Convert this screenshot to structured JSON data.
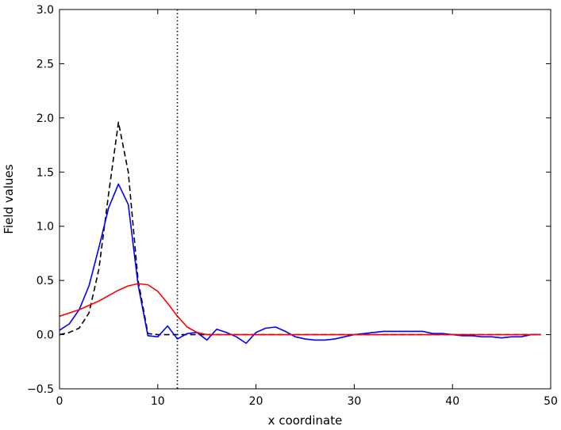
{
  "chart_data": {
    "type": "line",
    "title": "",
    "xlabel": "x coordinate",
    "ylabel": "Field values",
    "xlim": [
      0,
      50
    ],
    "ylim": [
      -0.5,
      3.0
    ],
    "xticks": [
      0,
      10,
      20,
      30,
      40,
      50
    ],
    "yticks": [
      -0.5,
      0.0,
      0.5,
      1.0,
      1.5,
      2.0,
      2.5,
      3.0
    ],
    "xtick_labels": [
      "0",
      "10",
      "20",
      "30",
      "40",
      "50"
    ],
    "ytick_labels": [
      "−0.5",
      "0.0",
      "0.5",
      "1.0",
      "1.5",
      "2.0",
      "2.5",
      "3.0"
    ],
    "grid": false,
    "legend": "none",
    "vline": {
      "x": 12,
      "style": "dotted",
      "color": "#000000"
    },
    "series": [
      {
        "color": "#000000",
        "style": "dashed",
        "x": [
          0,
          1,
          2,
          3,
          4,
          5,
          6,
          7,
          8,
          9,
          10,
          11,
          12,
          13,
          14,
          15,
          16,
          17,
          18,
          19,
          20,
          21,
          22,
          23,
          24,
          25,
          26,
          27,
          28,
          29,
          30,
          31,
          32,
          33,
          34,
          35,
          36,
          37,
          38,
          39,
          40,
          41,
          42,
          43,
          44,
          45,
          46,
          47,
          48,
          49
        ],
        "y": [
          0.0,
          0.02,
          0.06,
          0.2,
          0.6,
          1.3,
          1.96,
          1.5,
          0.5,
          0.01,
          0.0,
          0.0,
          0.0,
          0.0,
          0.0,
          0.0,
          0.0,
          0.0,
          0.0,
          0.0,
          0.0,
          0.0,
          0.0,
          0.0,
          0.0,
          0.0,
          0.0,
          0.0,
          0.0,
          0.0,
          0.0,
          0.0,
          0.0,
          0.0,
          0.0,
          0.0,
          0.0,
          0.0,
          0.0,
          0.0,
          0.0,
          0.0,
          0.0,
          0.0,
          0.0,
          0.0,
          0.0,
          0.0,
          0.0,
          0.0
        ]
      },
      {
        "color": "#0000ff",
        "style": "solid",
        "x": [
          0,
          1,
          2,
          3,
          4,
          5,
          6,
          7,
          8,
          9,
          10,
          11,
          12,
          13,
          14,
          15,
          16,
          17,
          18,
          19,
          20,
          21,
          22,
          23,
          24,
          25,
          26,
          27,
          28,
          29,
          30,
          31,
          32,
          33,
          34,
          35,
          36,
          37,
          38,
          39,
          40,
          41,
          42,
          43,
          44,
          45,
          46,
          47,
          48,
          49
        ],
        "y": [
          0.04,
          0.1,
          0.23,
          0.45,
          0.8,
          1.17,
          1.39,
          1.2,
          0.46,
          -0.01,
          -0.02,
          0.08,
          -0.04,
          0.01,
          0.02,
          -0.05,
          0.05,
          0.02,
          -0.02,
          -0.08,
          0.02,
          0.06,
          0.07,
          0.03,
          -0.02,
          -0.04,
          -0.05,
          -0.05,
          -0.04,
          -0.02,
          0.0,
          0.01,
          0.02,
          0.03,
          0.03,
          0.03,
          0.03,
          0.03,
          0.01,
          0.01,
          0.0,
          -0.01,
          -0.01,
          -0.02,
          -0.02,
          -0.03,
          -0.02,
          -0.02,
          0.0,
          0.0
        ]
      },
      {
        "color": "#ff0000",
        "style": "solid",
        "x": [
          0,
          1,
          2,
          3,
          4,
          5,
          6,
          7,
          8,
          9,
          10,
          11,
          12,
          13,
          14,
          15,
          16,
          17,
          18,
          19,
          20,
          21,
          22,
          23,
          24,
          25,
          26,
          27,
          28,
          29,
          30,
          31,
          32,
          33,
          34,
          35,
          36,
          37,
          38,
          39,
          40,
          41,
          42,
          43,
          44,
          45,
          46,
          47,
          48,
          49
        ],
        "y": [
          0.17,
          0.2,
          0.23,
          0.27,
          0.31,
          0.36,
          0.41,
          0.45,
          0.47,
          0.46,
          0.4,
          0.29,
          0.17,
          0.07,
          0.02,
          0.0,
          0.0,
          0.0,
          0.0,
          0.0,
          0.0,
          0.0,
          0.0,
          0.0,
          0.0,
          0.0,
          0.0,
          0.0,
          0.0,
          0.0,
          0.0,
          0.0,
          0.0,
          0.0,
          0.0,
          0.0,
          0.0,
          0.0,
          0.0,
          0.0,
          0.0,
          0.0,
          0.0,
          0.0,
          0.0,
          0.0,
          0.0,
          0.0,
          0.0,
          0.0
        ]
      }
    ]
  }
}
